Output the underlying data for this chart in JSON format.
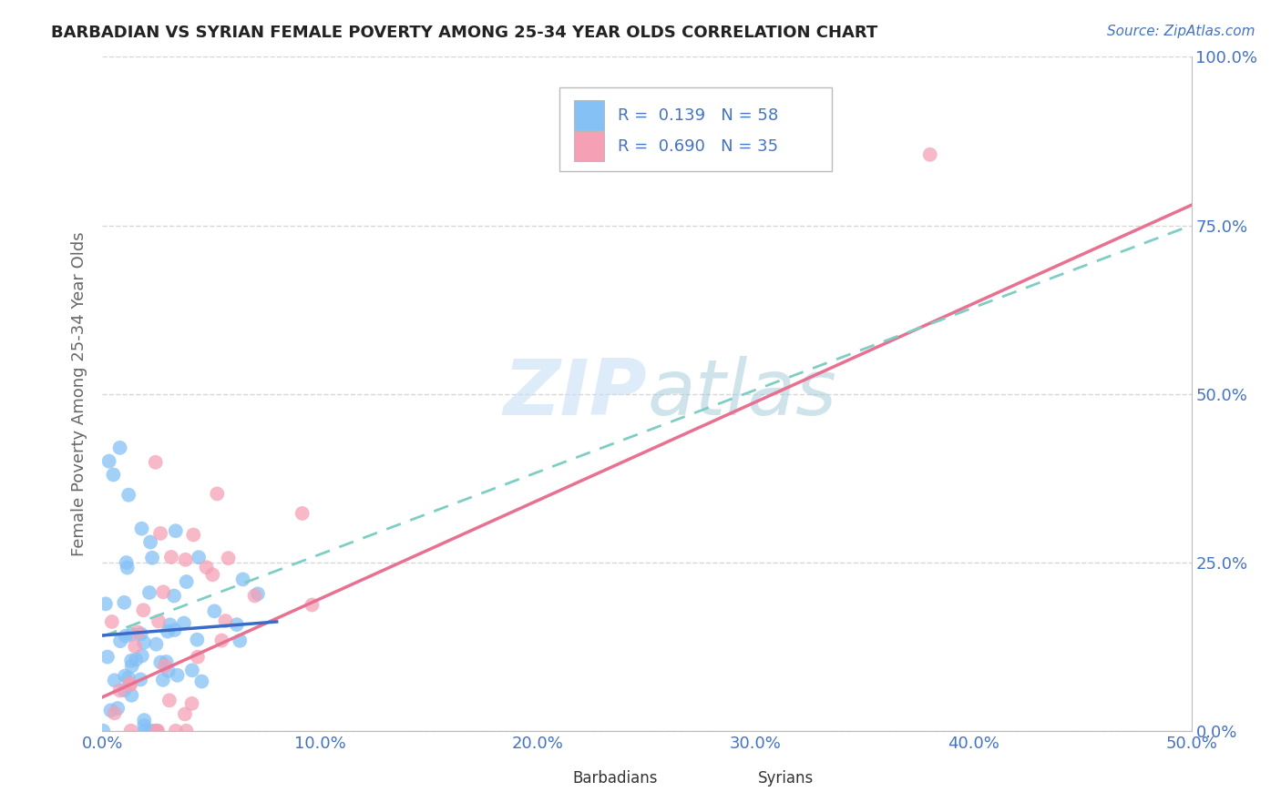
{
  "title": "BARBADIAN VS SYRIAN FEMALE POVERTY AMONG 25-34 YEAR OLDS CORRELATION CHART",
  "source": "Source: ZipAtlas.com",
  "ylabel": "Female Poverty Among 25-34 Year Olds",
  "xlim": [
    0.0,
    0.5
  ],
  "ylim": [
    0.0,
    1.0
  ],
  "xticks": [
    0.0,
    0.1,
    0.2,
    0.3,
    0.4,
    0.5
  ],
  "yticks": [
    0.0,
    0.25,
    0.5,
    0.75,
    1.0
  ],
  "xticklabels": [
    "0.0%",
    "10.0%",
    "20.0%",
    "30.0%",
    "40.0%",
    "50.0%"
  ],
  "yticklabels": [
    "0.0%",
    "25.0%",
    "50.0%",
    "75.0%",
    "100.0%"
  ],
  "barbadian_color": "#85C1F5",
  "syrian_color": "#F5A0B5",
  "barbadian_R": 0.139,
  "barbadian_N": 58,
  "syrian_R": 0.69,
  "syrian_N": 35,
  "barbadian_line_color": "#3A6BC8",
  "barbadian_trendline_color": "#7ECEC4",
  "syrian_line_color": "#E87090",
  "watermark_color": "#C8E0F5",
  "background_color": "#FFFFFF",
  "tick_color": "#4472C4",
  "ylabel_color": "#666666",
  "grid_color": "#CCCCCC"
}
